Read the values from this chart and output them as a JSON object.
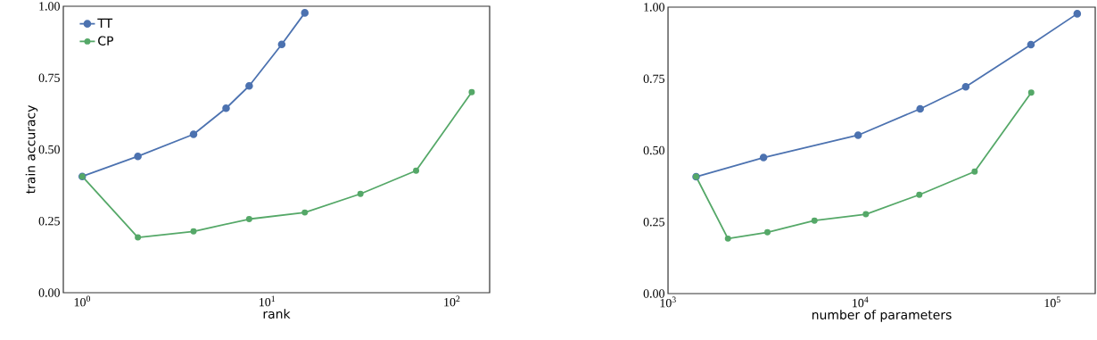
{
  "chart_data": [
    {
      "type": "line",
      "xlabel": "rank",
      "ylabel": "train accuracy",
      "log": "x",
      "xlim": [
        0.79,
        160
      ],
      "ylim": [
        0,
        1
      ],
      "xticks": [
        {
          "value": 1,
          "label": "10$^{0}$"
        },
        {
          "value": 10,
          "label": "10$^{1}$"
        },
        {
          "value": 100,
          "label": "10$^{2}$"
        }
      ],
      "yticks": [
        {
          "value": 0,
          "label": "0.00"
        },
        {
          "value": 0.25,
          "label": "0.25"
        },
        {
          "value": 0.5,
          "label": "0.50"
        },
        {
          "value": 0.75,
          "label": "0.75"
        },
        {
          "value": 1,
          "label": "1.00"
        }
      ],
      "grid": false,
      "legend": "top left",
      "marker": "circle",
      "line_style": "solid",
      "series": [
        {
          "name": "TT",
          "color": "#4c72b0",
          "x": [
            1,
            2,
            4,
            6,
            8,
            12,
            16
          ],
          "values": [
            0.406,
            0.476,
            0.553,
            0.644,
            0.722,
            0.867,
            0.977
          ]
        },
        {
          "name": "CP",
          "color": "#55a868",
          "x": [
            1,
            2,
            4,
            8,
            16,
            32,
            64,
            128
          ],
          "values": [
            0.406,
            0.193,
            0.214,
            0.257,
            0.28,
            0.345,
            0.426,
            0.7
          ]
        }
      ]
    },
    {
      "type": "line",
      "xlabel": "number of parameters",
      "log": "x",
      "xlim": [
        1000,
        167000
      ],
      "ylim": [
        0,
        1
      ],
      "xticks": [
        {
          "value": 1000,
          "label": "10$^{3}$"
        },
        {
          "value": 10000,
          "label": "10$^{4}$"
        },
        {
          "value": 100000,
          "label": "10$^{5}$"
        }
      ],
      "yticks": [
        {
          "value": 0,
          "label": "0.00"
        },
        {
          "value": 0.25,
          "label": "0.25"
        },
        {
          "value": 0.5,
          "label": "0.50"
        },
        {
          "value": 0.75,
          "label": "0.75"
        },
        {
          "value": 1,
          "label": "1.00"
        }
      ],
      "grid": false,
      "legend": false,
      "marker": "circle",
      "line_style": "solid",
      "series": [
        {
          "color": "#4c72b0",
          "x": [
            1400,
            3140,
            9750,
            20500,
            35400,
            77300,
            134600
          ],
          "values": [
            0.408,
            0.475,
            0.553,
            0.645,
            0.722,
            0.869,
            0.977
          ]
        },
        {
          "color": "#55a868",
          "x": [
            1400,
            2050,
            3290,
            5780,
            10700,
            20300,
            39400,
            77600
          ],
          "values": [
            0.408,
            0.192,
            0.214,
            0.255,
            0.277,
            0.345,
            0.426,
            0.702
          ]
        }
      ]
    }
  ]
}
